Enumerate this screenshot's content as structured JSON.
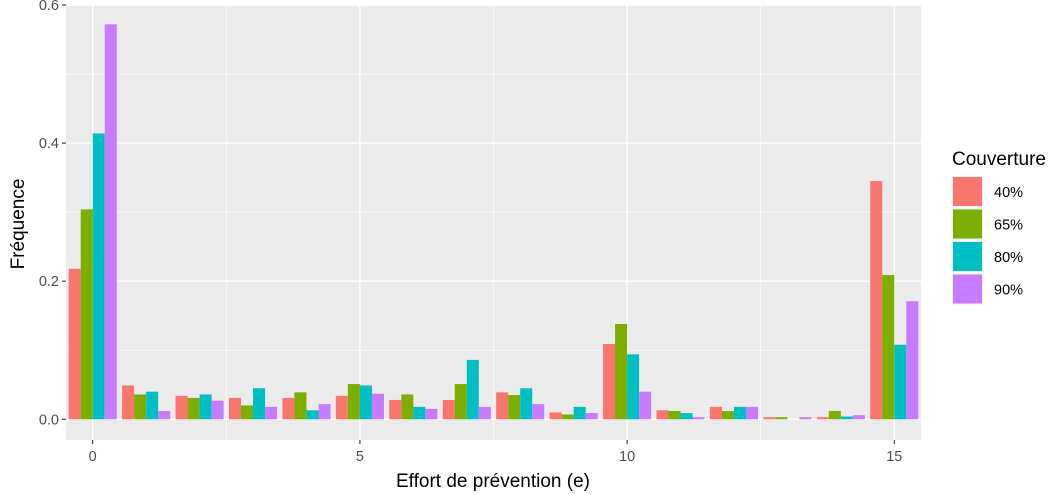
{
  "chart_data": {
    "type": "bar",
    "title": "",
    "xlabel": "Effort de prévention (e)",
    "ylabel": "Fréquence",
    "x": [
      0,
      1,
      2,
      3,
      4,
      5,
      6,
      7,
      8,
      9,
      10,
      11,
      12,
      13,
      14,
      15
    ],
    "xlim": [
      -0.5,
      15.5
    ],
    "ylim": [
      -0.03,
      0.6
    ],
    "x_ticks": [
      0,
      5,
      10,
      15
    ],
    "x_tick_labels": [
      "0",
      "5",
      "10",
      "15"
    ],
    "y_ticks": [
      0.0,
      0.2,
      0.4,
      0.6
    ],
    "y_tick_labels": [
      "0.0",
      "0.2",
      "0.4",
      "0.6"
    ],
    "grid": true,
    "legend": {
      "title": "Couverture",
      "position": "right"
    },
    "series": [
      {
        "name": "40%",
        "color": "#F8766D",
        "values": [
          0.218,
          0.049,
          0.034,
          0.031,
          0.031,
          0.034,
          0.028,
          0.028,
          0.039,
          0.01,
          0.109,
          0.013,
          0.018,
          0.003,
          0.003,
          0.345
        ]
      },
      {
        "name": "65%",
        "color": "#7CAE00",
        "values": [
          0.304,
          0.036,
          0.031,
          0.02,
          0.039,
          0.051,
          0.036,
          0.051,
          0.035,
          0.007,
          0.138,
          0.012,
          0.012,
          0.003,
          0.012,
          0.209
        ]
      },
      {
        "name": "80%",
        "color": "#00BFC4",
        "values": [
          0.414,
          0.04,
          0.036,
          0.045,
          0.013,
          0.049,
          0.018,
          0.086,
          0.045,
          0.018,
          0.094,
          0.009,
          0.018,
          0.0,
          0.004,
          0.108
        ]
      },
      {
        "name": "90%",
        "color": "#C77CFF",
        "values": [
          0.572,
          0.012,
          0.027,
          0.018,
          0.022,
          0.037,
          0.015,
          0.018,
          0.022,
          0.009,
          0.04,
          0.003,
          0.018,
          0.003,
          0.006,
          0.171
        ]
      }
    ]
  }
}
